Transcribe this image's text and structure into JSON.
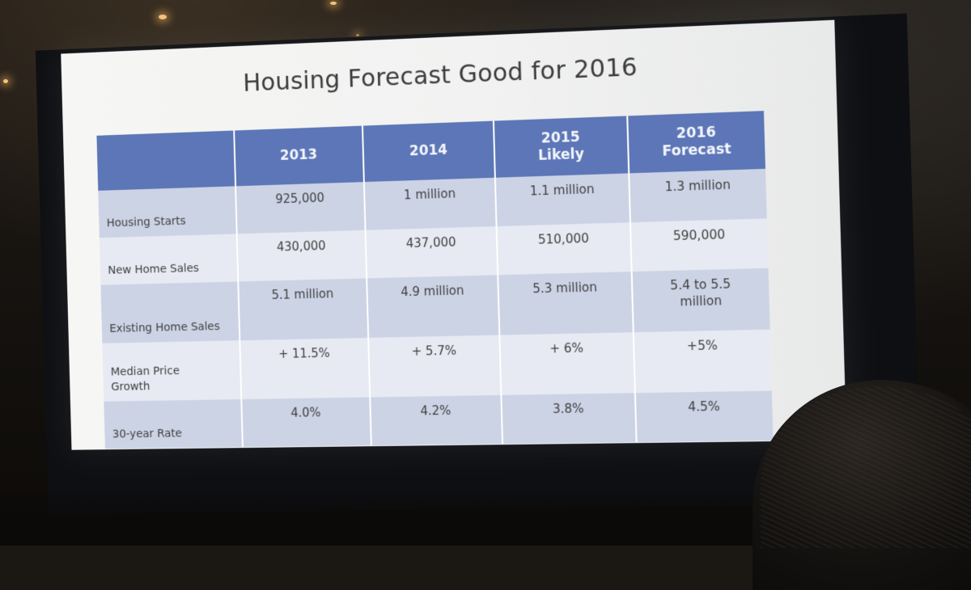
{
  "slide": {
    "title": "Housing Forecast Good for 2016"
  },
  "table": {
    "header": {
      "corner": "",
      "col_2013": "2013",
      "col_2014": "2014",
      "col_2015_line1": "2015",
      "col_2015_line2": "Likely",
      "col_2016_line1": "2016",
      "col_2016_line2": "Forecast"
    },
    "rows": [
      {
        "label": "Housing Starts",
        "v2013": "925,000",
        "v2014": "1 million",
        "v2015": "1.1 million",
        "v2016": "1.3 million"
      },
      {
        "label": "New Home Sales",
        "v2013": "430,000",
        "v2014": "437,000",
        "v2015": "510,000",
        "v2016": "590,000"
      },
      {
        "label": "Existing Home Sales",
        "v2013": "5.1 million",
        "v2014": "4.9 million",
        "v2015": "5.3 million",
        "v2016_line1": "5.4 to 5.5",
        "v2016_line2": "million"
      },
      {
        "label_line1": "Median Price",
        "label_line2": "Growth",
        "v2013": "+ 11.5%",
        "v2014": "+ 5.7%",
        "v2015": "+ 6%",
        "v2016": "+5%"
      },
      {
        "label": "30-year Rate",
        "v2013": "4.0%",
        "v2014": "4.2%",
        "v2015": "3.8%",
        "v2016": "4.5%"
      }
    ]
  },
  "colors": {
    "header_blue": "#5c76b7",
    "row_dark": "#ccd3e5",
    "row_light": "#e7eaf2",
    "slide_bg": "#f3f3f2"
  }
}
